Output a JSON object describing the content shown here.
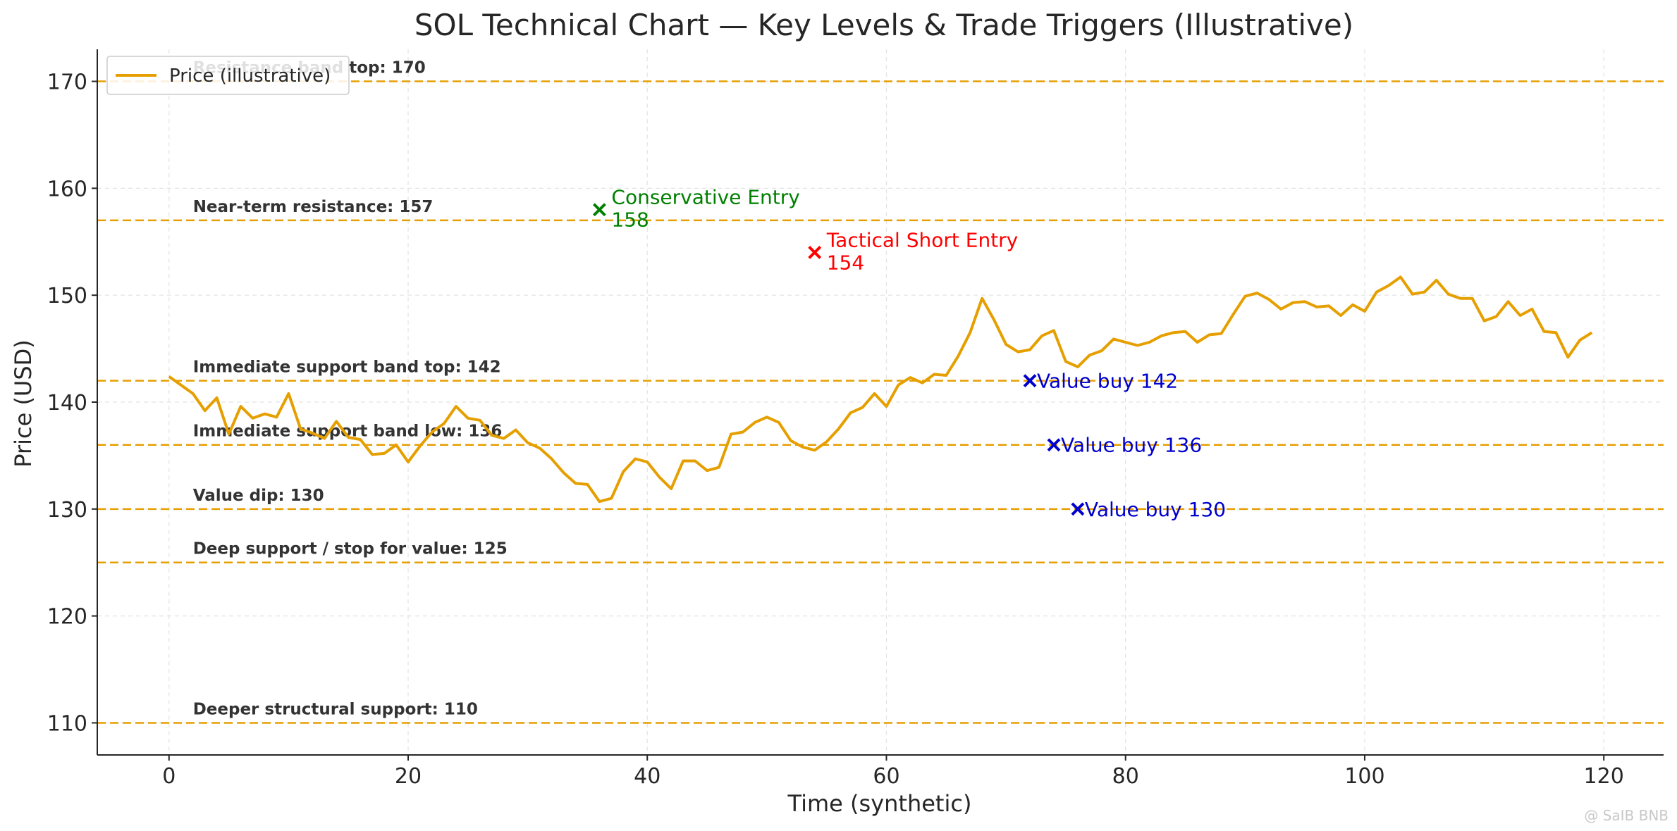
{
  "chart_data": {
    "type": "line",
    "title": "SOL Technical Chart — Key Levels & Trade Triggers (Illustrative)",
    "xlabel": "Time (synthetic)",
    "ylabel": "Price (USD)",
    "xlim": [
      -6,
      125
    ],
    "ylim": [
      107,
      173
    ],
    "x_ticks": [
      0,
      20,
      40,
      60,
      80,
      100,
      120
    ],
    "y_ticks": [
      110,
      120,
      130,
      140,
      150,
      160,
      170
    ],
    "grid": true,
    "legend_position": "top-left",
    "series": [
      {
        "name": "Price (illustrative)",
        "color": "#E69F00",
        "x_start": 0,
        "x_step": 1,
        "values": [
          142.4,
          141.6,
          140.8,
          139.2,
          140.4,
          137.0,
          139.6,
          138.5,
          138.9,
          138.6,
          140.8,
          137.5,
          137.1,
          136.6,
          138.2,
          136.7,
          136.5,
          135.1,
          135.2,
          136.0,
          134.4,
          135.9,
          137.2,
          138.0,
          139.6,
          138.5,
          138.3,
          136.9,
          136.6,
          137.4,
          136.2,
          135.7,
          134.7,
          133.4,
          132.4,
          132.3,
          130.7,
          131.0,
          133.5,
          134.7,
          134.4,
          133.0,
          131.9,
          134.5,
          134.5,
          133.6,
          133.9,
          137.0,
          137.2,
          138.1,
          138.6,
          138.1,
          136.4,
          135.8,
          135.5,
          136.3,
          137.5,
          139.0,
          139.5,
          140.8,
          139.6,
          141.6,
          142.3,
          141.8,
          142.6,
          142.5,
          144.3,
          146.5,
          149.7,
          147.7,
          145.4,
          144.7,
          144.9,
          146.2,
          146.7,
          143.8,
          143.3,
          144.4,
          144.8,
          145.9,
          145.6,
          145.3,
          145.6,
          146.2,
          146.5,
          146.6,
          145.6,
          146.3,
          146.4,
          148.2,
          149.9,
          150.2,
          149.6,
          148.7,
          149.3,
          149.4,
          148.9,
          149.0,
          148.1,
          149.1,
          148.5,
          150.3,
          150.9,
          151.7,
          150.1,
          150.3,
          151.4,
          150.1,
          149.7,
          149.7,
          147.6,
          148.0,
          149.4,
          148.1,
          148.7,
          146.6,
          146.5,
          144.2,
          145.8,
          146.5
        ]
      }
    ],
    "levels": [
      {
        "y": 170,
        "label": "Resistance band top: 170"
      },
      {
        "y": 157,
        "label": "Near-term resistance: 157"
      },
      {
        "y": 142,
        "label": "Immediate support band top: 142"
      },
      {
        "y": 136,
        "label": "Immediate support band low: 136"
      },
      {
        "y": 130,
        "label": "Value dip: 130"
      },
      {
        "y": 125,
        "label": "Deep support / stop for value: 125"
      },
      {
        "y": 110,
        "label": "Deeper structural support: 110"
      }
    ],
    "level_color": "#E69F00",
    "markers": [
      {
        "x": 36,
        "y": 158,
        "label": [
          "Conservative Entry",
          "158"
        ],
        "color": "#008000"
      },
      {
        "x": 54,
        "y": 154,
        "label": [
          "Tactical Short Entry",
          "154"
        ],
        "color": "#FF0000"
      },
      {
        "x": 72,
        "y": 142,
        "label": [
          "Value buy 142"
        ],
        "color": "#0000CC"
      },
      {
        "x": 74,
        "y": 136,
        "label": [
          "Value buy 136"
        ],
        "color": "#0000CC"
      },
      {
        "x": 76,
        "y": 130,
        "label": [
          "Value buy 130"
        ],
        "color": "#0000CC"
      }
    ]
  },
  "watermark": "@ SaIB BNB"
}
